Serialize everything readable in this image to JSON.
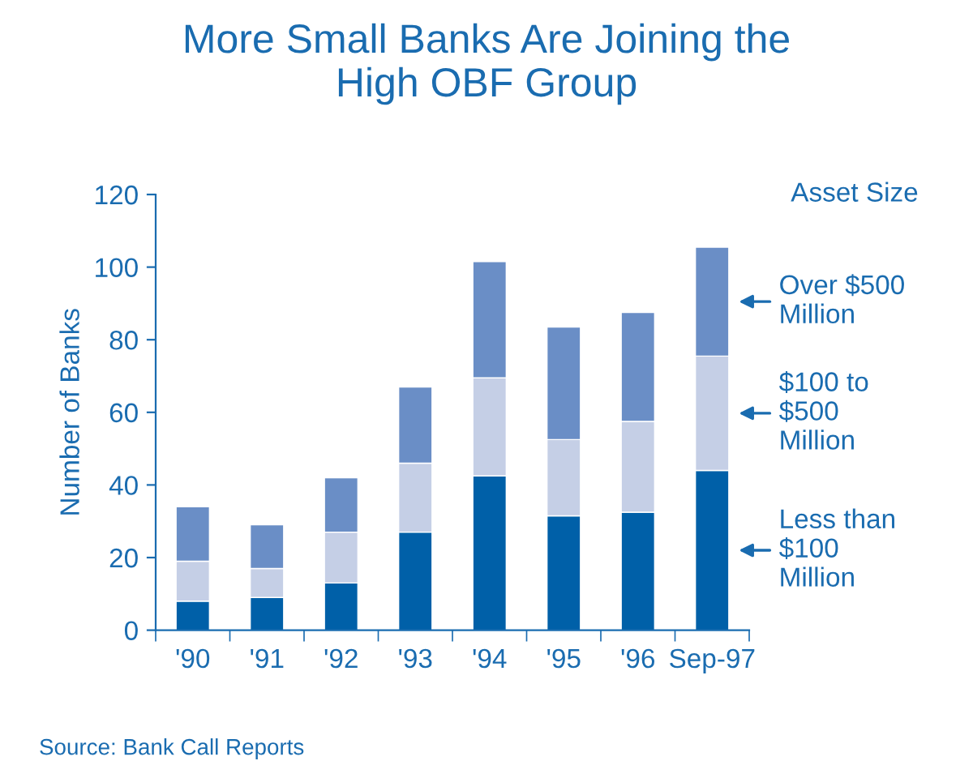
{
  "chart_data": {
    "type": "bar",
    "stacked": true,
    "title": "More Small Banks Are Joining the\nHigh OBF Group",
    "ylabel": "Number of Banks",
    "legend_title": "Asset Size",
    "categories": [
      "'90",
      "'91",
      "'92",
      "'93",
      "'94",
      "'95",
      "'96",
      "Sep-97"
    ],
    "series": [
      {
        "name": "Less than\n$100\nMillion",
        "color": "#0060a8",
        "values": [
          8,
          9,
          13,
          27,
          42.5,
          31.5,
          32.5,
          44
        ]
      },
      {
        "name": "$100 to\n$500\nMillion",
        "color": "#c5cfe6",
        "values": [
          11,
          8,
          14,
          19,
          27,
          21,
          25,
          31.5
        ]
      },
      {
        "name": "Over $500\nMillion",
        "color": "#6a8ec6",
        "values": [
          15,
          12,
          15,
          21,
          32,
          31,
          30,
          30
        ]
      }
    ],
    "ylim": [
      0,
      120
    ],
    "yticks": [
      0,
      20,
      40,
      60,
      80,
      100,
      120
    ],
    "grid": false,
    "legend": "right",
    "annotations": [
      "Source: Bank Call Reports"
    ]
  }
}
